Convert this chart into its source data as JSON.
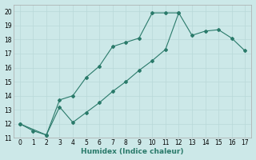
{
  "xlabel": "Humidex (Indice chaleur)",
  "ylabel": "",
  "bg_color": "#cce8e8",
  "line_color": "#2a7a6a",
  "marker_color": "#2a7a6a",
  "xlim": [
    -0.5,
    17.5
  ],
  "ylim": [
    11,
    20.5
  ],
  "xticks": [
    0,
    1,
    2,
    3,
    4,
    5,
    6,
    7,
    8,
    9,
    10,
    11,
    12,
    13,
    14,
    15,
    16,
    17
  ],
  "yticks": [
    11,
    12,
    13,
    14,
    15,
    16,
    17,
    18,
    19,
    20
  ],
  "series1_x": [
    0,
    1,
    2,
    3,
    4,
    5,
    6,
    7,
    8,
    9,
    10,
    11,
    12
  ],
  "series1_y": [
    12.0,
    11.5,
    11.2,
    13.7,
    14.0,
    15.3,
    16.1,
    17.5,
    17.8,
    18.1,
    19.9,
    19.9,
    19.9
  ],
  "series2_x": [
    0,
    2,
    3,
    4,
    5,
    6,
    7,
    8,
    9,
    10,
    11,
    12,
    13,
    14,
    15,
    16,
    17
  ],
  "series2_y": [
    12.0,
    11.2,
    13.2,
    12.1,
    12.8,
    13.5,
    14.3,
    15.0,
    15.8,
    16.5,
    17.3,
    19.9,
    18.3,
    18.6,
    18.7,
    18.1,
    17.2
  ]
}
